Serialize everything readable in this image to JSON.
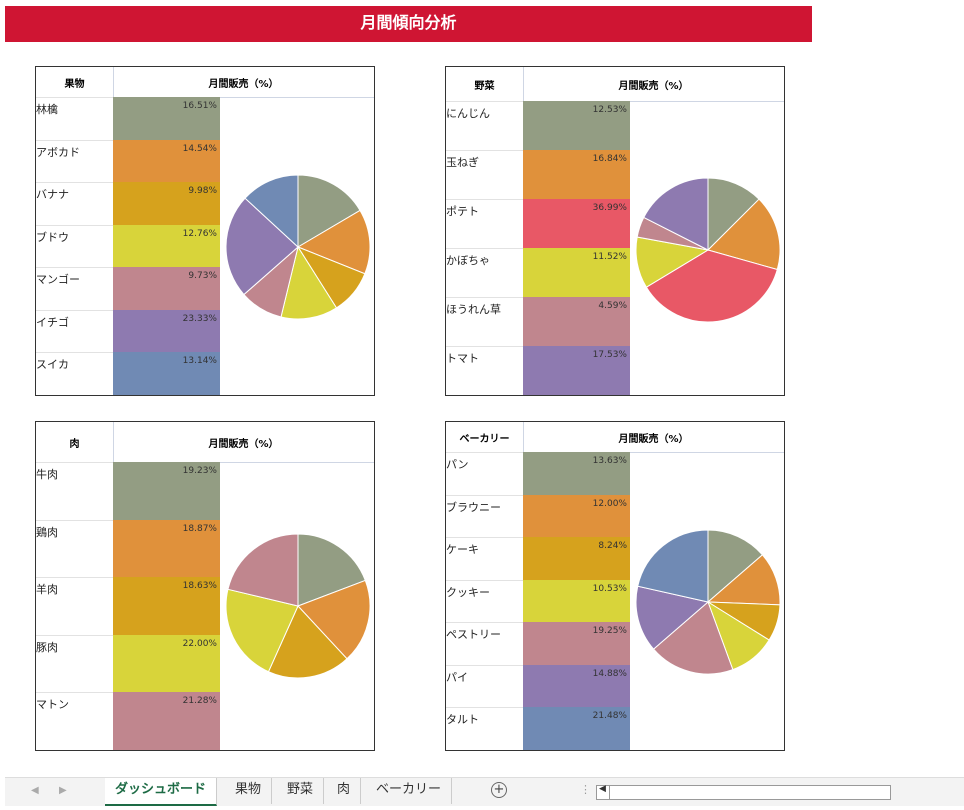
{
  "title": "月間傾向分析",
  "colors": [
    "#939D83",
    "#E0913B",
    "#D6A21D",
    "#D8D43A",
    "#C0868E",
    "#8E7AB0",
    "#708AB4"
  ],
  "potato_color": "#E85866",
  "panels": [
    {
      "category": "果物",
      "value_header": "月間販売（%）",
      "items": [
        {
          "name": "林檎",
          "value": 16.51,
          "label": "16.51%"
        },
        {
          "name": "アボカド",
          "value": 14.54,
          "label": "14.54%"
        },
        {
          "name": "バナナ",
          "value": 9.98,
          "label": "9.98%"
        },
        {
          "name": "ブドウ",
          "value": 12.76,
          "label": "12.76%"
        },
        {
          "name": "マンゴー",
          "value": 9.73,
          "label": "9.73%"
        },
        {
          "name": "イチゴ",
          "value": 23.33,
          "label": "23.33%"
        },
        {
          "name": "スイカ",
          "value": 13.14,
          "label": "13.14%"
        }
      ]
    },
    {
      "category": "野菜",
      "value_header": "月間販売（%）",
      "items": [
        {
          "name": "にんじん",
          "value": 12.53,
          "label": "12.53%"
        },
        {
          "name": "玉ねぎ",
          "value": 16.84,
          "label": "16.84%"
        },
        {
          "name": "ポテト",
          "value": 36.99,
          "label": "36.99%",
          "color": "#E85866"
        },
        {
          "name": "かぼちゃ",
          "value": 11.52,
          "label": "11.52%",
          "color": "#D8D43A"
        },
        {
          "name": "ほうれん草",
          "value": 4.59,
          "label": "4.59%",
          "color": "#C0868E"
        },
        {
          "name": "トマト",
          "value": 17.53,
          "label": "17.53%",
          "color": "#8E7AB0"
        }
      ]
    },
    {
      "category": "肉",
      "value_header": "月間販売（%）",
      "items": [
        {
          "name": "牛肉",
          "value": 19.23,
          "label": "19.23%"
        },
        {
          "name": "鶏肉",
          "value": 18.87,
          "label": "18.87%"
        },
        {
          "name": "羊肉",
          "value": 18.63,
          "label": "18.63%"
        },
        {
          "name": "豚肉",
          "value": 22.0,
          "label": "22.00%"
        },
        {
          "name": "マトン",
          "value": 21.28,
          "label": "21.28%"
        }
      ]
    },
    {
      "category": "ベーカリー",
      "value_header": "月間販売（%）",
      "items": [
        {
          "name": "パン",
          "value": 13.63,
          "label": "13.63%"
        },
        {
          "name": "ブラウニー",
          "value": 12.0,
          "label": "12.00%"
        },
        {
          "name": "ケーキ",
          "value": 8.24,
          "label": "8.24%"
        },
        {
          "name": "クッキー",
          "value": 10.53,
          "label": "10.53%"
        },
        {
          "name": "ペストリー",
          "value": 19.25,
          "label": "19.25%"
        },
        {
          "name": "パイ",
          "value": 14.88,
          "label": "14.88%"
        },
        {
          "name": "タルト",
          "value": 21.48,
          "label": "21.48%"
        }
      ]
    }
  ],
  "sheet_tabs": [
    "ダッシュボード",
    "果物",
    "野菜",
    "肉",
    "ベーカリー"
  ],
  "active_tab": 0
}
